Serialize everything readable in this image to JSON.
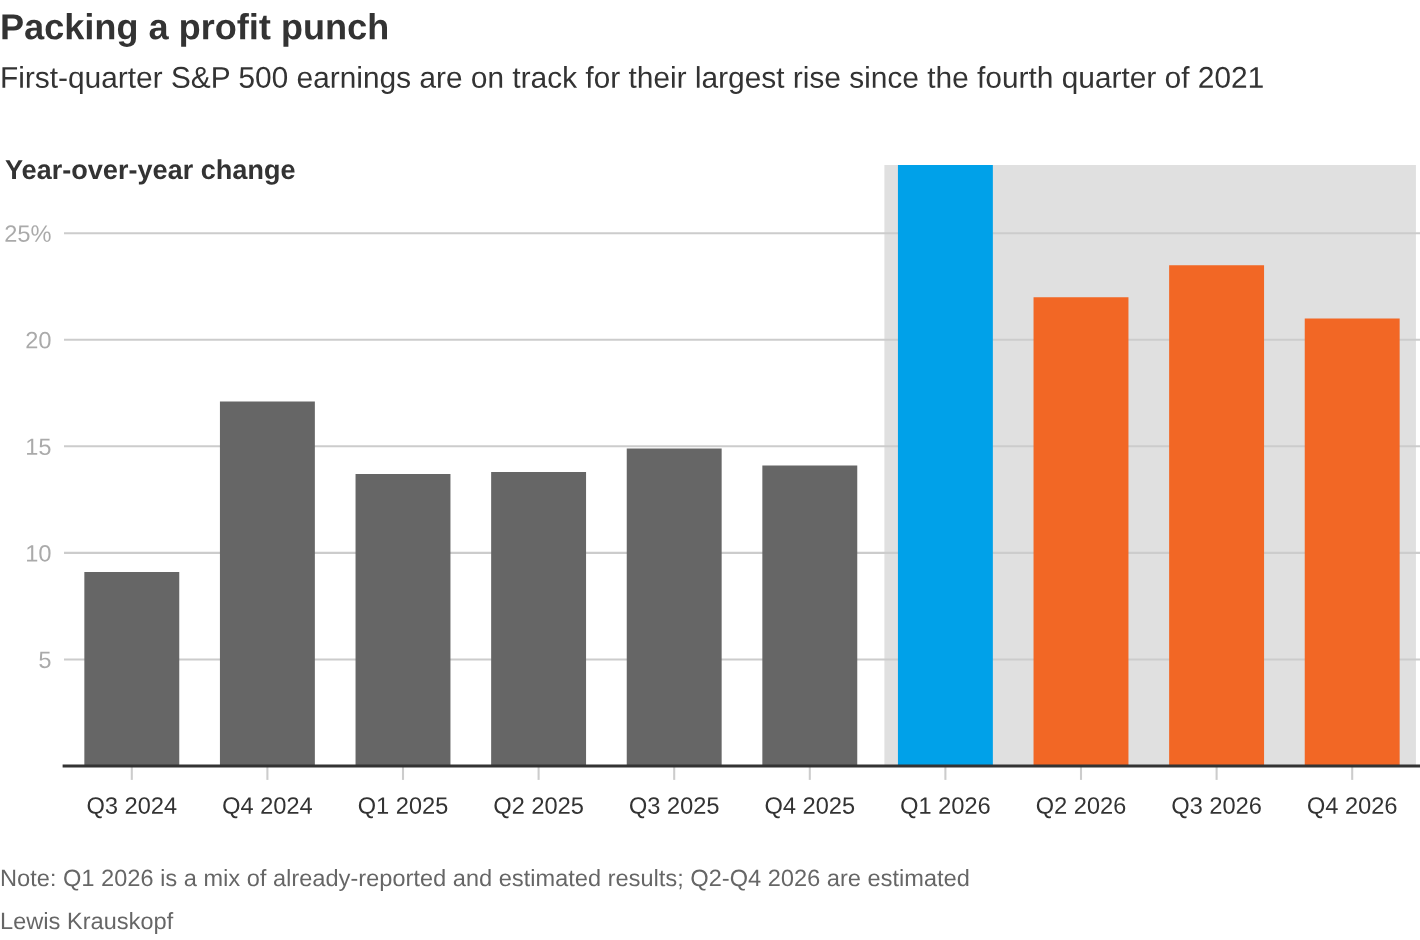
{
  "chart_data": {
    "type": "bar",
    "title": "Packing a profit punch",
    "subtitle": "First-quarter S&P 500 earnings are on track for their largest rise since the fourth quarter of 2021",
    "ylabel": "Year-over-year change",
    "categories": [
      "Q3 2024",
      "Q4 2024",
      "Q1 2025",
      "Q2 2025",
      "Q3 2025",
      "Q4 2025",
      "Q1 2026",
      "Q2 2026",
      "Q3 2026",
      "Q4 2026"
    ],
    "values": [
      9.1,
      17.1,
      13.7,
      13.8,
      14.9,
      14.1,
      28.2,
      22.0,
      23.5,
      21.0
    ],
    "colors": [
      "#666666",
      "#666666",
      "#666666",
      "#666666",
      "#666666",
      "#666666",
      "#00a1e9",
      "#f26725",
      "#f26725",
      "#f26725"
    ],
    "ylim": [
      0,
      28.2
    ],
    "yticks": [
      5,
      10,
      15,
      20,
      {
        "value": 25,
        "label": "25%"
      }
    ],
    "grid": "y",
    "bands": [
      {
        "axis": "x",
        "from": "Q1 2026",
        "to": "Q4 2026",
        "color": "#e0e0e0"
      }
    ],
    "annotations": [
      "Note: Q1 2026 is a mix of already-reported and estimated results; Q2-Q4 2026 are estimated",
      "Lewis Krauskopf"
    ]
  }
}
